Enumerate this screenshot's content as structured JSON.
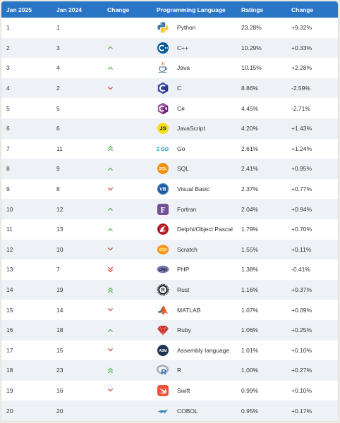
{
  "header": {
    "rank_2025": "Jan 2025",
    "rank_2024": "Jan 2024",
    "rank_change": "Change",
    "language": "Programming Language",
    "ratings": "Ratings",
    "ratings_change": "Change"
  },
  "colors": {
    "page_bg": "#eceee5",
    "header_bg": "#2a76c6",
    "header_text": "#ffffff",
    "row_alt_bg": "#eef2f6",
    "text": "#333333",
    "trend_up": "#5cb85c",
    "trend_down": "#e2493b"
  },
  "rows": [
    {
      "rank_2025": "1",
      "rank_2024": "1",
      "change_icon": null,
      "icon": "python-icon",
      "language": "Python",
      "rating": "23.28%",
      "change": "+9.32%"
    },
    {
      "rank_2025": "2",
      "rank_2024": "3",
      "change_icon": "chevron-up-icon",
      "icon": "cpp-icon",
      "language": "C++",
      "rating": "10.29%",
      "change": "+0.33%"
    },
    {
      "rank_2025": "3",
      "rank_2024": "4",
      "change_icon": "chevron-up-icon",
      "icon": "java-icon",
      "language": "Java",
      "rating": "10.15%",
      "change": "+2.28%"
    },
    {
      "rank_2025": "4",
      "rank_2024": "2",
      "change_icon": "chevron-down-icon",
      "icon": "c-icon",
      "language": "C",
      "rating": "8.86%",
      "change": "-2.59%"
    },
    {
      "rank_2025": "5",
      "rank_2024": "5",
      "change_icon": null,
      "icon": "csharp-icon",
      "language": "C#",
      "rating": "4.45%",
      "change": "-2.71%"
    },
    {
      "rank_2025": "6",
      "rank_2024": "6",
      "change_icon": null,
      "icon": "javascript-icon",
      "logo_text": "JS",
      "language": "JavaScript",
      "rating": "4.20%",
      "change": "+1.43%"
    },
    {
      "rank_2025": "7",
      "rank_2024": "11",
      "change_icon": "double-chevron-up-icon",
      "icon": "go-icon",
      "logo_text": "GO",
      "language": "Go",
      "rating": "2.61%",
      "change": "+1.24%"
    },
    {
      "rank_2025": "8",
      "rank_2024": "9",
      "change_icon": "chevron-up-icon",
      "icon": "sql-icon",
      "logo_text": "SQL",
      "language": "SQL",
      "rating": "2.41%",
      "change": "+0.95%"
    },
    {
      "rank_2025": "9",
      "rank_2024": "8",
      "change_icon": "chevron-down-icon",
      "icon": "visual-basic-icon",
      "logo_text": "VB",
      "language": "Visual Basic",
      "rating": "2.37%",
      "change": "+0.77%"
    },
    {
      "rank_2025": "10",
      "rank_2024": "12",
      "change_icon": "chevron-up-icon",
      "icon": "fortran-icon",
      "logo_text": "F",
      "language": "Fortran",
      "rating": "2.04%",
      "change": "+0.94%"
    },
    {
      "rank_2025": "11",
      "rank_2024": "13",
      "change_icon": "chevron-up-icon",
      "icon": "delphi-icon",
      "language": "Delphi/Object Pascal",
      "rating": "1.79%",
      "change": "+0.70%"
    },
    {
      "rank_2025": "12",
      "rank_2024": "10",
      "change_icon": "chevron-down-icon",
      "icon": "scratch-icon",
      "language": "Scratch",
      "rating": "1.55%",
      "change": "+0.11%"
    },
    {
      "rank_2025": "13",
      "rank_2024": "7",
      "change_icon": "double-chevron-down-icon",
      "icon": "php-icon",
      "logo_text": "php",
      "language": "PHP",
      "rating": "1.38%",
      "change": "-0.41%"
    },
    {
      "rank_2025": "14",
      "rank_2024": "19",
      "change_icon": "double-chevron-up-icon",
      "icon": "rust-icon",
      "logo_text": "R",
      "language": "Rust",
      "rating": "1.16%",
      "change": "+0.37%"
    },
    {
      "rank_2025": "15",
      "rank_2024": "14",
      "change_icon": "chevron-down-icon",
      "icon": "matlab-icon",
      "language": "MATLAB",
      "rating": "1.07%",
      "change": "+0.09%"
    },
    {
      "rank_2025": "16",
      "rank_2024": "18",
      "change_icon": "chevron-up-icon",
      "icon": "ruby-icon",
      "language": "Ruby",
      "rating": "1.06%",
      "change": "+0.25%"
    },
    {
      "rank_2025": "17",
      "rank_2024": "15",
      "change_icon": "chevron-down-icon",
      "icon": "assembly-icon",
      "logo_text": "ASM",
      "language": "Assembly language",
      "rating": "1.01%",
      "change": "+0.10%"
    },
    {
      "rank_2025": "18",
      "rank_2024": "23",
      "change_icon": "double-chevron-up-icon",
      "icon": "r-icon",
      "logo_text": "R",
      "language": "R",
      "rating": "1.00%",
      "change": "+0.27%"
    },
    {
      "rank_2025": "19",
      "rank_2024": "16",
      "change_icon": "chevron-down-icon",
      "icon": "swift-icon",
      "language": "Swift",
      "rating": "0.99%",
      "change": "+0.10%"
    },
    {
      "rank_2025": "20",
      "rank_2024": "20",
      "change_icon": null,
      "icon": "cobol-icon",
      "language": "COBOL",
      "rating": "0.95%",
      "change": "+0.17%"
    }
  ]
}
